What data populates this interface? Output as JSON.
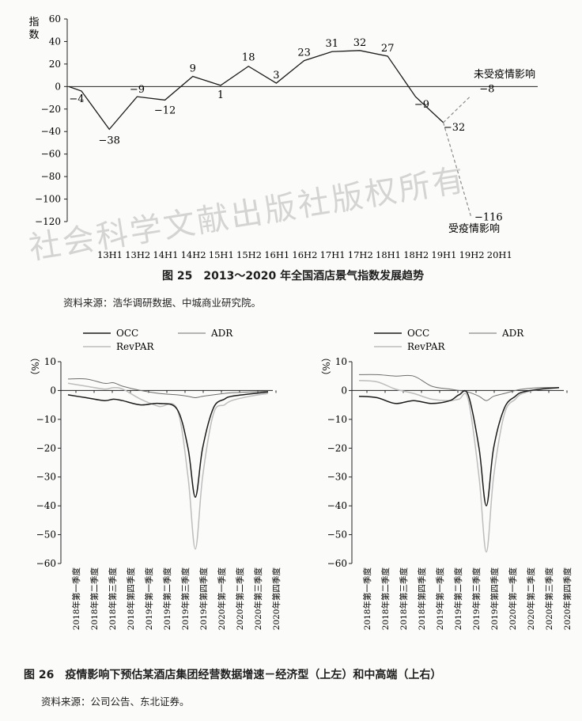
{
  "figure25": {
    "caption": "图 25　2013～2020 年全国酒店景气指数发展趋势",
    "source": "资料来源：浩华调研数据、中城商业研究院。",
    "ylabel": "指数",
    "annotation_unaffected": "未受疫情影响",
    "annotation_affected": "受疫情影响"
  },
  "figure26": {
    "caption": "图 26　疫情影响下预估某酒店集团经营数据增速－经济型（上左）和中高端（上右）",
    "source": "资料来源：公司公告、东北证券。",
    "ylabel": "（%）"
  },
  "watermark": "社会科学文献出版社版权所有",
  "colors": {
    "occ": "#1a1a1a",
    "adr": "#6e6e6e",
    "revpar": "#bdbdbd",
    "affected": "#8a8a8a"
  },
  "chart_data": [
    {
      "type": "line",
      "categories": [
        "13H1",
        "13H2",
        "14H1",
        "14H2",
        "15H1",
        "15H2",
        "16H1",
        "16H2",
        "17H1",
        "17H2",
        "18H1",
        "18H2",
        "19H1",
        "19H2",
        "20H1"
      ],
      "series": [
        {
          "name": "",
          "values": [
            -4,
            -38,
            -9,
            -12,
            9,
            1,
            18,
            3,
            23,
            31,
            32,
            27,
            -9,
            -32,
            -8
          ]
        },
        {
          "name": "",
          "values": [
            null,
            null,
            null,
            null,
            null,
            null,
            null,
            null,
            null,
            null,
            null,
            null,
            null,
            -32,
            -116
          ]
        }
      ],
      "annotations": [
        {
          "text": "-4",
          "category": "13H1"
        },
        {
          "text": "-38",
          "category": "13H2"
        },
        {
          "text": "-9",
          "category": "14H1"
        },
        {
          "text": "-12",
          "category": "14H2"
        },
        {
          "text": "9",
          "category": "15H1"
        },
        {
          "text": "1",
          "category": "15H2"
        },
        {
          "text": "18",
          "category": "16H1"
        },
        {
          "text": "3",
          "category": "16H2"
        },
        {
          "text": "23",
          "category": "17H1"
        },
        {
          "text": "31",
          "category": "17H2"
        },
        {
          "text": "32",
          "category": "18H1"
        },
        {
          "text": "27",
          "category": "18H2"
        },
        {
          "text": "-9",
          "category": "19H1"
        },
        {
          "text": "-32",
          "category": "19H2"
        },
        {
          "text": "-8",
          "category": "20H1"
        },
        {
          "text": "-116",
          "category": "20H1"
        }
      ],
      "ylim": [
        -120,
        60
      ],
      "yticks": [
        60,
        40,
        20,
        0,
        -20,
        -40,
        -60,
        -80,
        -100,
        -120
      ],
      "ylabel": "指数",
      "xlabel": "",
      "grid": false
    },
    {
      "type": "line",
      "categories": [
        "2018年第一季度",
        "2018年第二季度",
        "2018年第三季度",
        "2018年第四季度",
        "2019年第一季度",
        "2019年第二季度",
        "2019年第三季度",
        "2019年第四季度",
        "2020年第一季度",
        "2020年第二季度",
        "2020年第三季度",
        "2020年第四季度"
      ],
      "x": [
        0,
        1,
        2,
        2.5,
        3,
        4,
        5,
        6,
        6.6,
        7,
        7.4,
        8,
        8.6,
        9,
        10,
        11
      ],
      "series": [
        {
          "name": "OCC",
          "values": [
            -1.5,
            -2.5,
            -3.5,
            -3.0,
            -3.5,
            -5.0,
            -4.5,
            -6.5,
            -20,
            -37,
            -20,
            -6,
            -3,
            -2,
            -1.2,
            -0.5
          ]
        },
        {
          "name": "ADR",
          "values": [
            4.0,
            4.0,
            2.5,
            2.7,
            1.5,
            0.0,
            -1.0,
            -1.5,
            -2,
            -2.5,
            -2,
            -1.5,
            -1,
            -0.8,
            -0.5,
            -0.2
          ]
        },
        {
          "name": "RevPAR",
          "values": [
            2.5,
            1.5,
            0.5,
            1.0,
            0.5,
            -3.0,
            -5.5,
            -6.5,
            -30,
            -55,
            -30,
            -8,
            -5,
            -3.5,
            -2,
            -1
          ]
        }
      ],
      "ylim": [
        -60,
        10
      ],
      "yticks": [
        10,
        0,
        -10,
        -20,
        -30,
        -40,
        -50,
        -60
      ],
      "ylabel": "（%）",
      "legend": "top"
    },
    {
      "type": "line",
      "categories": [
        "2018年第一季度",
        "2018年第二季度",
        "2018年第三季度",
        "2018年第四季度",
        "2019年第一季度",
        "2019年第二季度",
        "2019年第三季度",
        "2019年第四季度",
        "2020年第一季度",
        "2020年第二季度",
        "2020年第三季度",
        "2020年第四季度"
      ],
      "x": [
        0,
        1,
        2,
        3,
        4,
        5,
        5.5,
        6,
        6.6,
        7,
        7.4,
        8,
        8.6,
        9,
        10,
        11
      ],
      "series": [
        {
          "name": "OCC",
          "values": [
            -2,
            -2.5,
            -4.5,
            -3.5,
            -4.5,
            -3.5,
            -1.5,
            -1.5,
            -20,
            -40,
            -20,
            -6,
            -2,
            -0.5,
            0.5,
            1
          ]
        },
        {
          "name": "ADR",
          "values": [
            5.5,
            5.5,
            5.0,
            5.0,
            1.5,
            0.5,
            0,
            -0.5,
            -2,
            -3.5,
            -2,
            -1,
            0,
            0.5,
            1,
            1
          ]
        },
        {
          "name": "RevPAR",
          "values": [
            3.5,
            3.0,
            0.5,
            -1.0,
            -3.0,
            -3.5,
            -3,
            -3,
            -30,
            -56,
            -30,
            -8,
            -3,
            -1,
            0.5,
            1
          ]
        }
      ],
      "ylim": [
        -60,
        10
      ],
      "yticks": [
        10,
        0,
        -10,
        -20,
        -30,
        -40,
        -50,
        -60
      ],
      "ylabel": "（%）",
      "legend": "top"
    }
  ]
}
